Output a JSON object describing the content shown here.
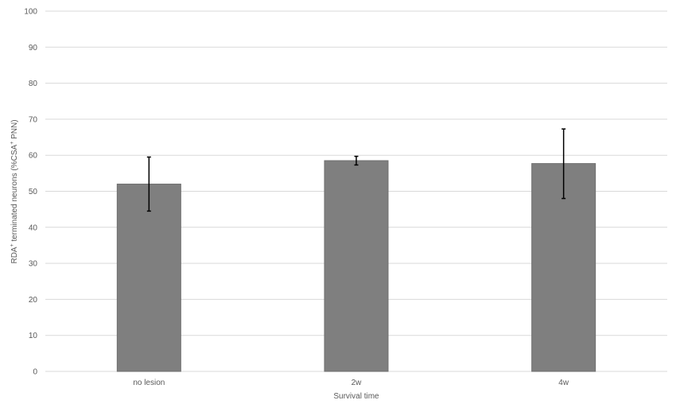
{
  "chart_data": {
    "type": "bar",
    "categories": [
      "no lesion",
      "2w",
      "4w"
    ],
    "values": [
      52,
      58.5,
      57.7
    ],
    "error_low": [
      44.5,
      57.3,
      48
    ],
    "error_high": [
      59.5,
      59.7,
      67.3
    ],
    "xlabel": "Survival time",
    "ylabel_parts": {
      "p1": "RDA",
      "sup1": "+",
      "p2": " terminated neurons (%CSA",
      "sup2": "+",
      "p3": " PNN)"
    },
    "ylim": [
      0,
      100
    ],
    "yticks": [
      0,
      10,
      20,
      30,
      40,
      50,
      60,
      70,
      80,
      90,
      100
    ],
    "grid": true,
    "colors": {
      "bar": "#7f7f7f",
      "grid": "#d9d9d9",
      "error_bar": "#000000"
    }
  }
}
